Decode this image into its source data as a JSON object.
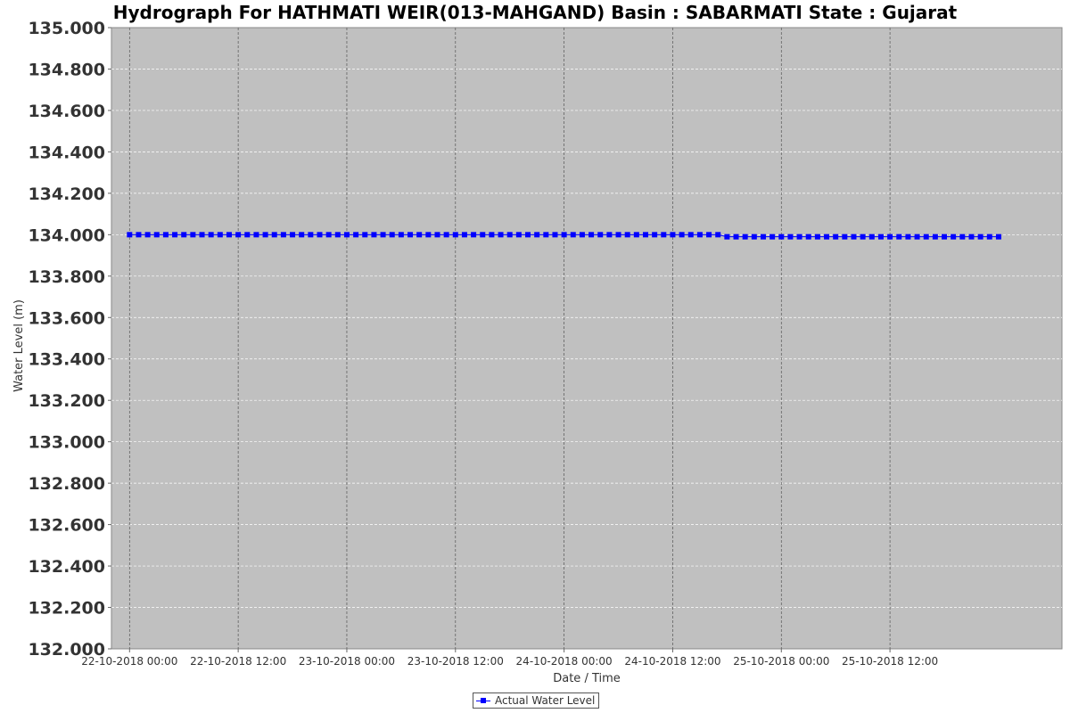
{
  "chart_data": {
    "type": "line",
    "title": "Hydrograph For HATHMATI WEIR(013-MAHGAND) Basin : SABARMATI State : Gujarat",
    "xlabel": "Date / Time",
    "ylabel": "Water Level (m)",
    "ylim": [
      132.0,
      135.0
    ],
    "y_ticks": [
      "132.000",
      "132.200",
      "132.400",
      "132.600",
      "132.800",
      "133.000",
      "133.200",
      "133.400",
      "133.600",
      "133.800",
      "134.000",
      "134.200",
      "134.400",
      "134.600",
      "134.800",
      "135.000"
    ],
    "x_ticks": [
      "22-10-2018 00:00",
      "22-10-2018 12:00",
      "23-10-2018 00:00",
      "23-10-2018 12:00",
      "24-10-2018 00:00",
      "24-10-2018 12:00",
      "25-10-2018 00:00",
      "25-10-2018 12:00"
    ],
    "x_range": [
      "21-10-2018 22:00",
      "26-10-2018 07:00"
    ],
    "grid": true,
    "legend_position": "bottom-center",
    "plot_background": "#c0c0c0",
    "series": [
      {
        "name": "Actual Water Level",
        "color": "#0000ff",
        "marker": "square",
        "x_start": "22-10-2018 00:00",
        "x_step_hours": 1,
        "y": [
          134.0,
          134.0,
          134.0,
          134.0,
          134.0,
          134.0,
          134.0,
          134.0,
          134.0,
          134.0,
          134.0,
          134.0,
          134.0,
          134.0,
          134.0,
          134.0,
          134.0,
          134.0,
          134.0,
          134.0,
          134.0,
          134.0,
          134.0,
          134.0,
          134.0,
          134.0,
          134.0,
          134.0,
          134.0,
          134.0,
          134.0,
          134.0,
          134.0,
          134.0,
          134.0,
          134.0,
          134.0,
          134.0,
          134.0,
          134.0,
          134.0,
          134.0,
          134.0,
          134.0,
          134.0,
          134.0,
          134.0,
          134.0,
          134.0,
          134.0,
          134.0,
          134.0,
          134.0,
          134.0,
          134.0,
          134.0,
          134.0,
          134.0,
          134.0,
          134.0,
          134.0,
          134.0,
          134.0,
          134.0,
          134.0,
          134.0,
          133.99,
          133.99,
          133.99,
          133.99,
          133.99,
          133.99,
          133.99,
          133.99,
          133.99,
          133.99,
          133.99,
          133.99,
          133.99,
          133.99,
          133.99,
          133.99,
          133.99,
          133.99,
          133.99,
          133.99,
          133.99,
          133.99,
          133.99,
          133.99,
          133.99,
          133.99,
          133.99,
          133.99,
          133.99,
          133.99,
          133.99
        ]
      }
    ]
  }
}
